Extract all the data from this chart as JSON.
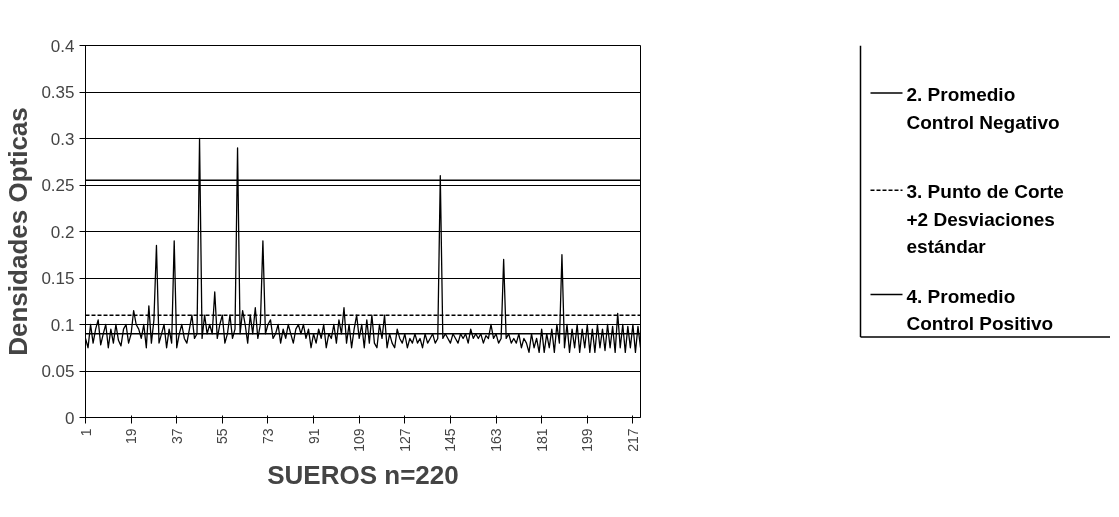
{
  "chart_data": {
    "type": "line",
    "xlabel": "SUEROS n=220",
    "ylabel": "Densidades Opticas",
    "x": [
      1,
      2,
      3,
      4,
      5,
      6,
      7,
      8,
      9,
      10,
      11,
      12,
      13,
      14,
      15,
      16,
      17,
      18,
      19,
      20,
      21,
      22,
      23,
      24,
      25,
      26,
      27,
      28,
      29,
      30,
      31,
      32,
      33,
      34,
      35,
      36,
      37,
      38,
      39,
      40,
      41,
      42,
      43,
      44,
      45,
      46,
      47,
      48,
      49,
      50,
      51,
      52,
      53,
      54,
      55,
      56,
      57,
      58,
      59,
      60,
      61,
      62,
      63,
      64,
      65,
      66,
      67,
      68,
      69,
      70,
      71,
      72,
      73,
      74,
      75,
      76,
      77,
      78,
      79,
      80,
      81,
      82,
      83,
      84,
      85,
      86,
      87,
      88,
      89,
      90,
      91,
      92,
      93,
      94,
      95,
      96,
      97,
      98,
      99,
      100,
      101,
      102,
      103,
      104,
      105,
      106,
      107,
      108,
      109,
      110,
      111,
      112,
      113,
      114,
      115,
      116,
      117,
      118,
      119,
      120,
      121,
      122,
      123,
      124,
      125,
      126,
      127,
      128,
      129,
      130,
      131,
      132,
      133,
      134,
      135,
      136,
      137,
      138,
      139,
      140,
      141,
      142,
      143,
      144,
      145,
      146,
      147,
      148,
      149,
      150,
      151,
      152,
      153,
      154,
      155,
      156,
      157,
      158,
      159,
      160,
      161,
      162,
      163,
      164,
      165,
      166,
      167,
      168,
      169,
      170,
      171,
      172,
      173,
      174,
      175,
      176,
      177,
      178,
      179,
      180,
      181,
      182,
      183,
      184,
      185,
      186,
      187,
      188,
      189,
      190,
      191,
      192,
      193,
      194,
      195,
      196,
      197,
      198,
      199,
      200,
      201,
      202,
      203,
      204,
      205,
      206,
      207,
      208,
      209,
      210,
      211,
      212,
      213,
      214,
      215,
      216,
      217,
      218,
      219,
      220
    ],
    "series": [
      {
        "color": "#000000",
        "values": [
          0.085,
          0.075,
          0.1,
          0.08,
          0.095,
          0.105,
          0.078,
          0.09,
          0.1,
          0.075,
          0.095,
          0.08,
          0.1,
          0.083,
          0.077,
          0.095,
          0.1,
          0.08,
          0.09,
          0.115,
          0.1,
          0.095,
          0.085,
          0.1,
          0.075,
          0.12,
          0.08,
          0.105,
          0.185,
          0.08,
          0.09,
          0.1,
          0.075,
          0.095,
          0.08,
          0.19,
          0.075,
          0.09,
          0.1,
          0.085,
          0.08,
          0.095,
          0.11,
          0.085,
          0.09,
          0.3,
          0.085,
          0.11,
          0.09,
          0.1,
          0.09,
          0.135,
          0.085,
          0.1,
          0.11,
          0.08,
          0.09,
          0.11,
          0.085,
          0.095,
          0.29,
          0.09,
          0.115,
          0.1,
          0.08,
          0.11,
          0.09,
          0.118,
          0.085,
          0.1,
          0.19,
          0.09,
          0.1,
          0.105,
          0.085,
          0.09,
          0.1,
          0.08,
          0.095,
          0.085,
          0.1,
          0.09,
          0.08,
          0.095,
          0.1,
          0.09,
          0.1,
          0.085,
          0.095,
          0.075,
          0.09,
          0.08,
          0.095,
          0.085,
          0.1,
          0.075,
          0.09,
          0.085,
          0.1,
          0.08,
          0.105,
          0.09,
          0.118,
          0.08,
          0.1,
          0.075,
          0.095,
          0.11,
          0.085,
          0.1,
          0.075,
          0.105,
          0.08,
          0.11,
          0.08,
          0.075,
          0.1,
          0.085,
          0.11,
          0.075,
          0.09,
          0.08,
          0.075,
          0.095,
          0.085,
          0.08,
          0.09,
          0.075,
          0.085,
          0.08,
          0.09,
          0.08,
          0.085,
          0.075,
          0.09,
          0.08,
          0.085,
          0.09,
          0.08,
          0.085,
          0.26,
          0.085,
          0.09,
          0.085,
          0.08,
          0.09,
          0.085,
          0.08,
          0.09,
          0.085,
          0.09,
          0.08,
          0.095,
          0.085,
          0.09,
          0.085,
          0.09,
          0.08,
          0.088,
          0.085,
          0.1,
          0.085,
          0.09,
          0.08,
          0.085,
          0.17,
          0.085,
          0.09,
          0.08,
          0.085,
          0.08,
          0.09,
          0.075,
          0.085,
          0.08,
          0.07,
          0.09,
          0.075,
          0.085,
          0.07,
          0.095,
          0.07,
          0.09,
          0.075,
          0.095,
          0.07,
          0.1,
          0.08,
          0.175,
          0.075,
          0.1,
          0.07,
          0.095,
          0.075,
          0.1,
          0.07,
          0.095,
          0.075,
          0.1,
          0.07,
          0.095,
          0.07,
          0.1,
          0.075,
          0.095,
          0.072,
          0.1,
          0.075,
          0.098,
          0.07,
          0.112,
          0.075,
          0.1,
          0.07,
          0.098,
          0.075,
          0.1,
          0.07,
          0.098,
          0.075
        ]
      }
    ],
    "ref_lines": [
      {
        "axis": "y",
        "value": 0.09,
        "label": "2. Promedio Control Negativo",
        "color": "#000000",
        "line_style": "solid"
      },
      {
        "axis": "y",
        "value": 0.11,
        "label": "3. Punto de Corte +2 Desviaciones estándar",
        "color": "#000000",
        "line_style": "dashed"
      },
      {
        "axis": "y",
        "value": 0.255,
        "label": "4. Promedio Control Positivo",
        "color": "#000000",
        "line_style": "solid"
      }
    ],
    "xlim": [
      1,
      220
    ],
    "xticks": [
      1,
      19,
      37,
      55,
      73,
      91,
      109,
      127,
      145,
      163,
      181,
      199,
      217
    ],
    "ylim": [
      0,
      0.4
    ],
    "yticks": [
      0,
      0.05,
      0.1,
      0.15,
      0.2,
      0.25,
      0.3,
      0.35,
      0.4
    ],
    "grid": "y",
    "legend": "right",
    "marker": "none",
    "line_style": "solid"
  }
}
